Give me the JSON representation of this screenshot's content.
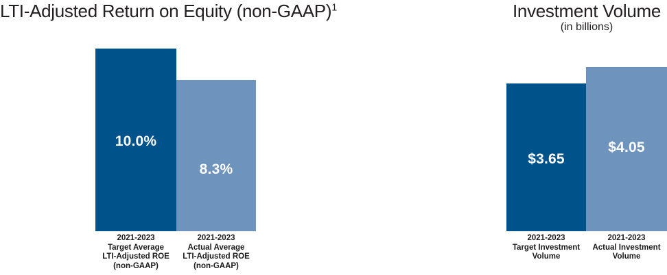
{
  "colors": {
    "bar_dark_blue": "#00528B",
    "bar_light_blue": "#6E93BC",
    "value_label_text": "#FFFFFF",
    "title_text": "#231F20",
    "category_text": "#1A1A1A",
    "background": "#FFFFFF"
  },
  "charts": {
    "roe": {
      "title": "LTI-Adjusted Return on Equity (non-GAAP)",
      "title_superscript": "1",
      "bars": [
        {
          "value_label": "10.0%",
          "label_lines": [
            "2021-2023",
            "Target Average",
            "LTI-Adjusted ROE",
            "(non-GAAP)"
          ]
        },
        {
          "value_label": "8.3%",
          "label_lines": [
            "2021-2023",
            "Actual Average",
            "LTI-Adjusted ROE",
            "(non-GAAP)"
          ]
        }
      ]
    },
    "investment": {
      "title": "Investment Volume",
      "subtitle": "(in billions)",
      "bars": [
        {
          "value_label": "$3.65",
          "label_lines": [
            "2021-2023",
            "Target Investment",
            "Volume"
          ]
        },
        {
          "value_label": "$4.05",
          "label_lines": [
            "2021-2023",
            "Actual Investment",
            "Volume"
          ]
        }
      ]
    }
  },
  "chart_data": [
    {
      "type": "bar",
      "title": "LTI-Adjusted Return on Equity (non-GAAP)¹",
      "categories": [
        "2021-2023 Target Average LTI-Adjusted ROE (non-GAAP)",
        "2021-2023 Actual Average LTI-Adjusted ROE (non-GAAP)"
      ],
      "values": [
        10.0,
        8.3
      ],
      "data_labels": [
        "10.0%",
        "8.3%"
      ],
      "unit": "%",
      "bar_colors": [
        "#00528B",
        "#6E93BC"
      ],
      "ylim": [
        0,
        10.5
      ],
      "grid": false,
      "legend_position": "none",
      "axes_visible": false
    },
    {
      "type": "bar",
      "title": "Investment Volume",
      "subtitle": "(in billions)",
      "categories": [
        "2021-2023 Target Investment Volume",
        "2021-2023 Actual Investment Volume"
      ],
      "values": [
        3.65,
        4.05
      ],
      "data_labels": [
        "$3.65",
        "$4.05"
      ],
      "unit": "$ billions",
      "bar_colors": [
        "#00528B",
        "#6E93BC"
      ],
      "ylim": [
        0,
        4.25
      ],
      "grid": false,
      "legend_position": "none",
      "axes_visible": false
    }
  ]
}
